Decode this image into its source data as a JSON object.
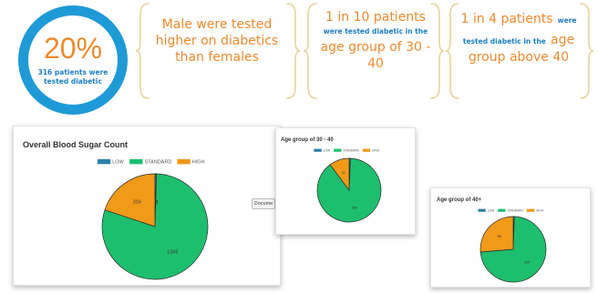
{
  "stats": {
    "ring_percent": "20%",
    "ring_caption": "316 patients were tested diabetic",
    "gender": "Male were tested higher on diabetics than females",
    "group_30_40": {
      "headline": "1 in 10 patients",
      "middle": "were tested diabetic in the",
      "tail": "age group of 30 - 40"
    },
    "group_40_plus": {
      "headline_orange": "1 in 4 patients",
      "headline_blue": "were",
      "middle": "tested diabetic in the",
      "tail_orange": "age",
      "tail": "group above 40"
    }
  },
  "colors": {
    "ring": "#1e9ad6",
    "highlight": "#ef8a2e",
    "caption": "#1e7fc4",
    "brace": "#e4d59a",
    "low": "#2f80a8",
    "standard": "#1dbf6e",
    "high": "#f09a18"
  },
  "legend": [
    "LOW",
    "STANDARD",
    "HIGH"
  ],
  "button_label": "Docume",
  "chart_data": [
    {
      "type": "pie",
      "title": "Overall Blood Sugar Count",
      "legend_position": "top",
      "categories": [
        "LOW",
        "STANDARD",
        "HIGH"
      ],
      "values": [
        7,
        1266,
        316
      ],
      "data_labels": [
        "",
        "1266",
        "316"
      ],
      "annotation": "7"
    },
    {
      "type": "pie",
      "title": "Age group of 30 - 40",
      "legend_position": "top",
      "categories": [
        "LOW",
        "STANDARD",
        "HIGH"
      ],
      "values": [
        2,
        280,
        32
      ],
      "data_labels": [
        "",
        "280",
        "32"
      ]
    },
    {
      "type": "pie",
      "title": "Age group of 40+",
      "legend_position": "top",
      "categories": [
        "LOW",
        "STANDARD",
        "HIGH"
      ],
      "values": [
        2,
        264,
        95
      ],
      "data_labels": [
        "",
        "264",
        "95"
      ]
    }
  ]
}
